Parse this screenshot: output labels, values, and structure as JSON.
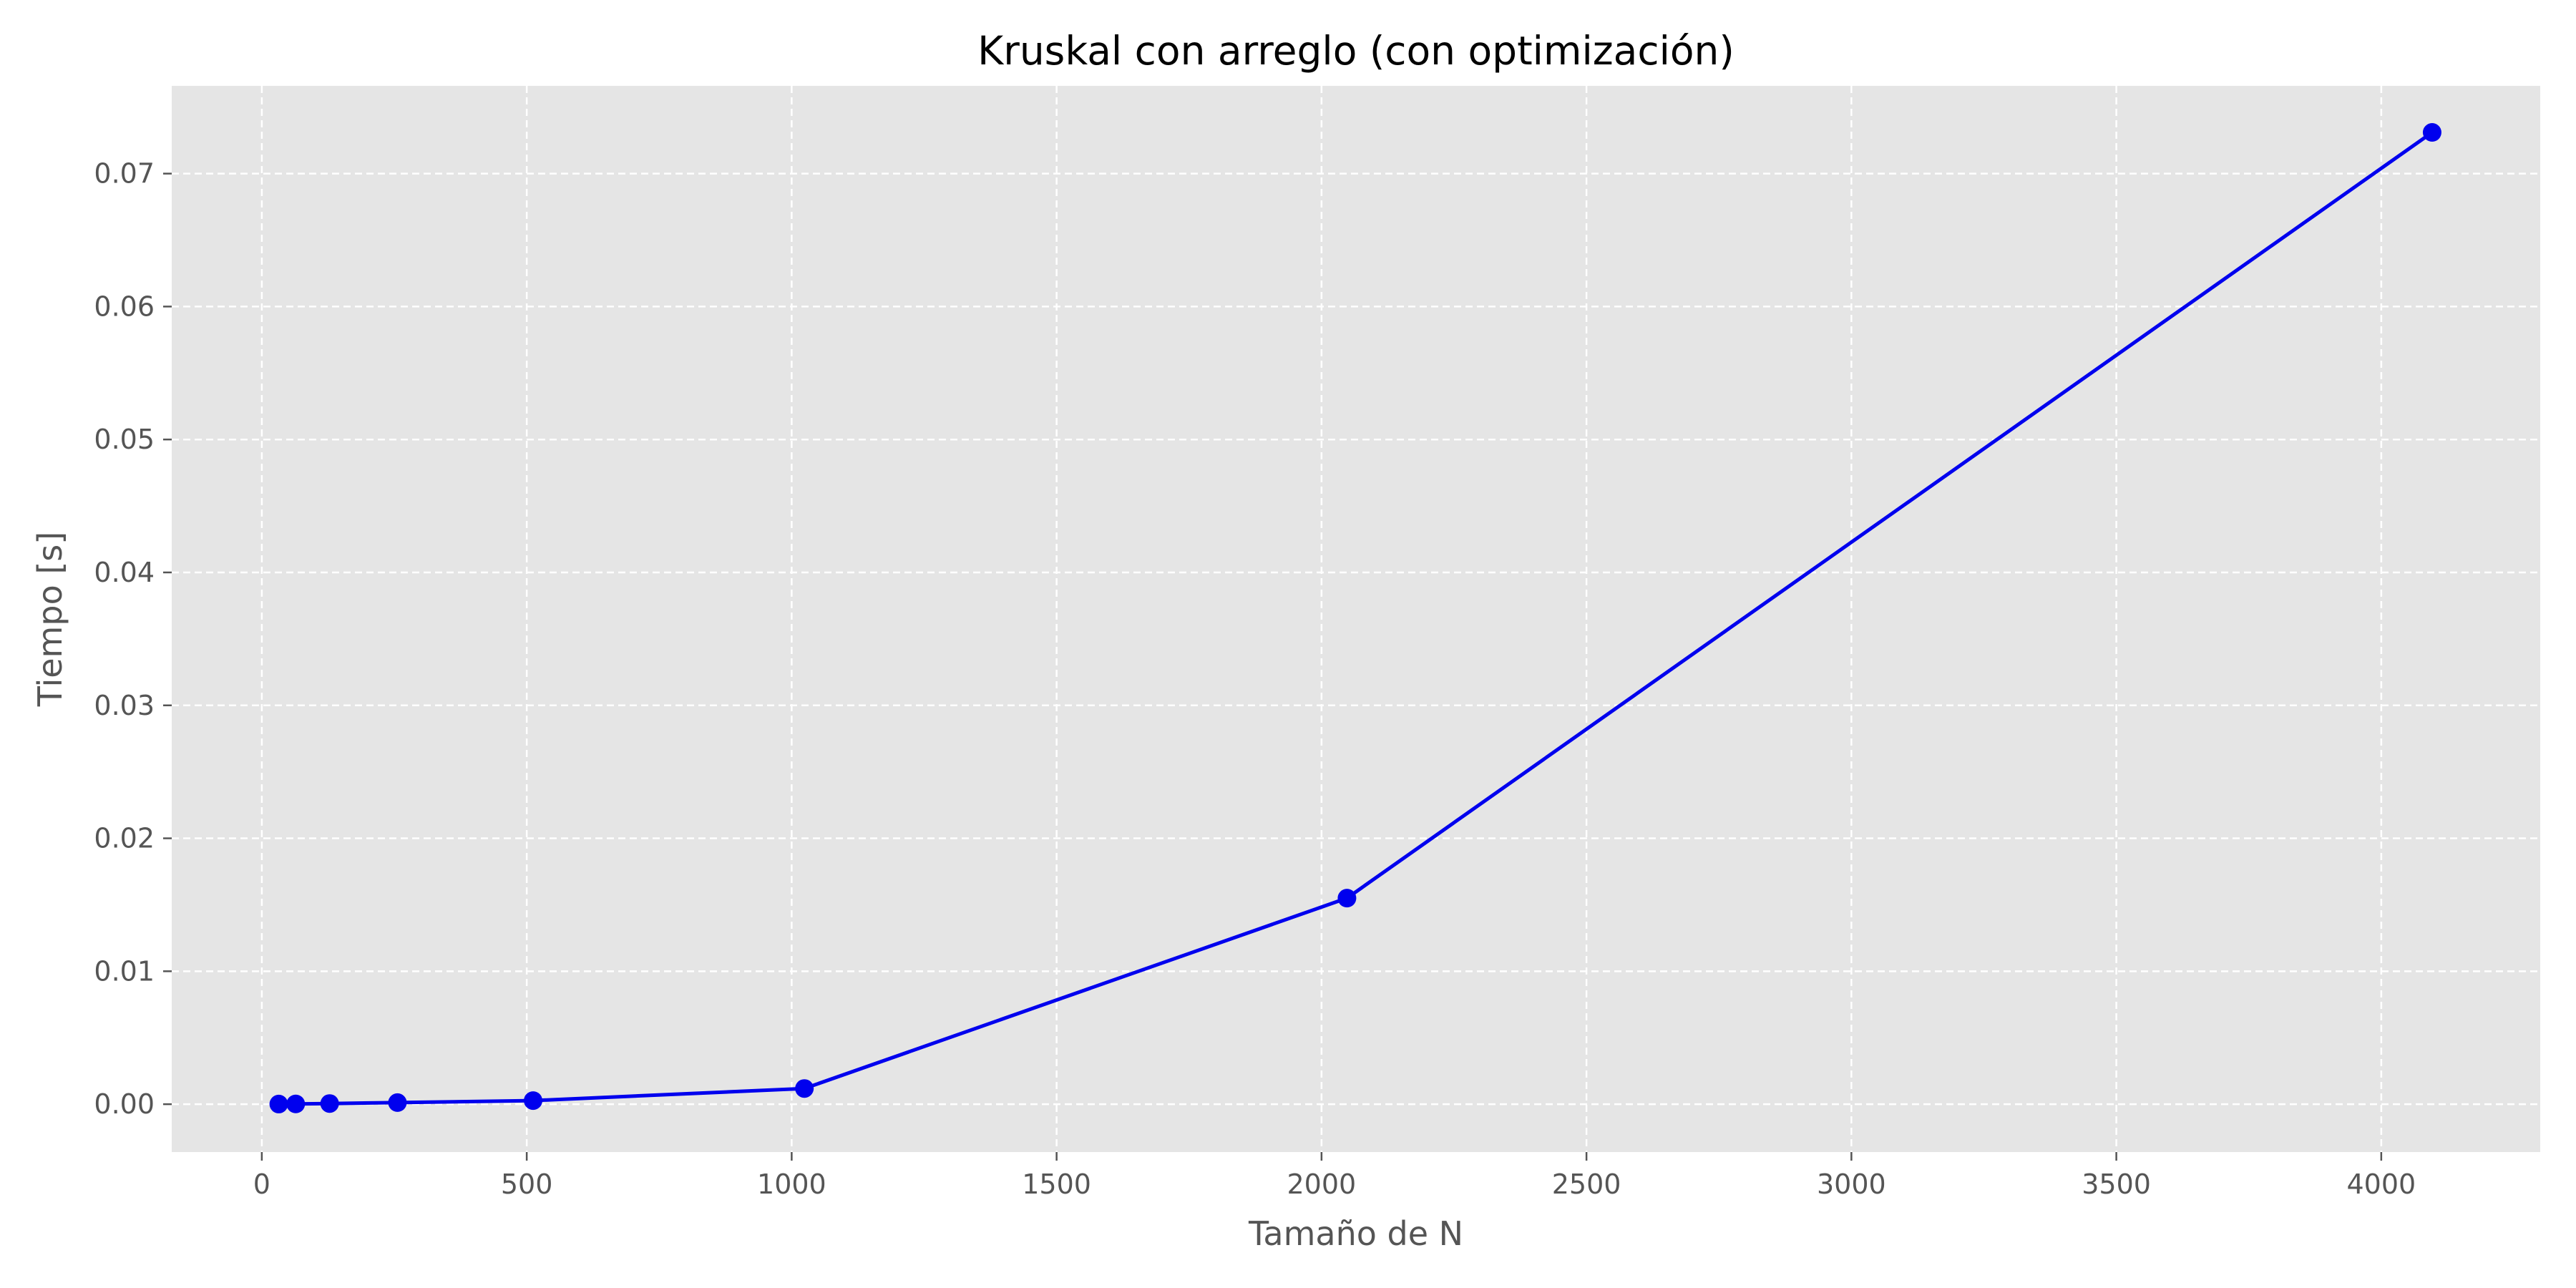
{
  "chart_data": {
    "type": "line",
    "title": "Kruskal con arreglo (con optimización)",
    "xlabel": "Tamaño de N",
    "ylabel": "Tiempo [s]",
    "xlim": [
      -170,
      4300
    ],
    "ylim": [
      -0.0036,
      0.0766
    ],
    "x_ticks": [
      0,
      500,
      1000,
      1500,
      2000,
      2500,
      3000,
      3500,
      4000
    ],
    "x_tick_labels": [
      "0",
      "500",
      "1000",
      "1500",
      "2000",
      "2500",
      "3000",
      "3500",
      "4000"
    ],
    "y_ticks": [
      0.0,
      0.01,
      0.02,
      0.03,
      0.04,
      0.05,
      0.06,
      0.07
    ],
    "y_tick_labels": [
      "0.00",
      "0.01",
      "0.02",
      "0.03",
      "0.04",
      "0.05",
      "0.06",
      "0.07"
    ],
    "grid": true,
    "series": [
      {
        "color": "#0000ee",
        "x": [
          32,
          64,
          128,
          256,
          512,
          1024,
          2048,
          4096
        ],
        "y": [
          1e-05,
          2e-05,
          5e-05,
          0.00012,
          0.00027,
          0.00118,
          0.0155,
          0.0731
        ]
      }
    ]
  }
}
